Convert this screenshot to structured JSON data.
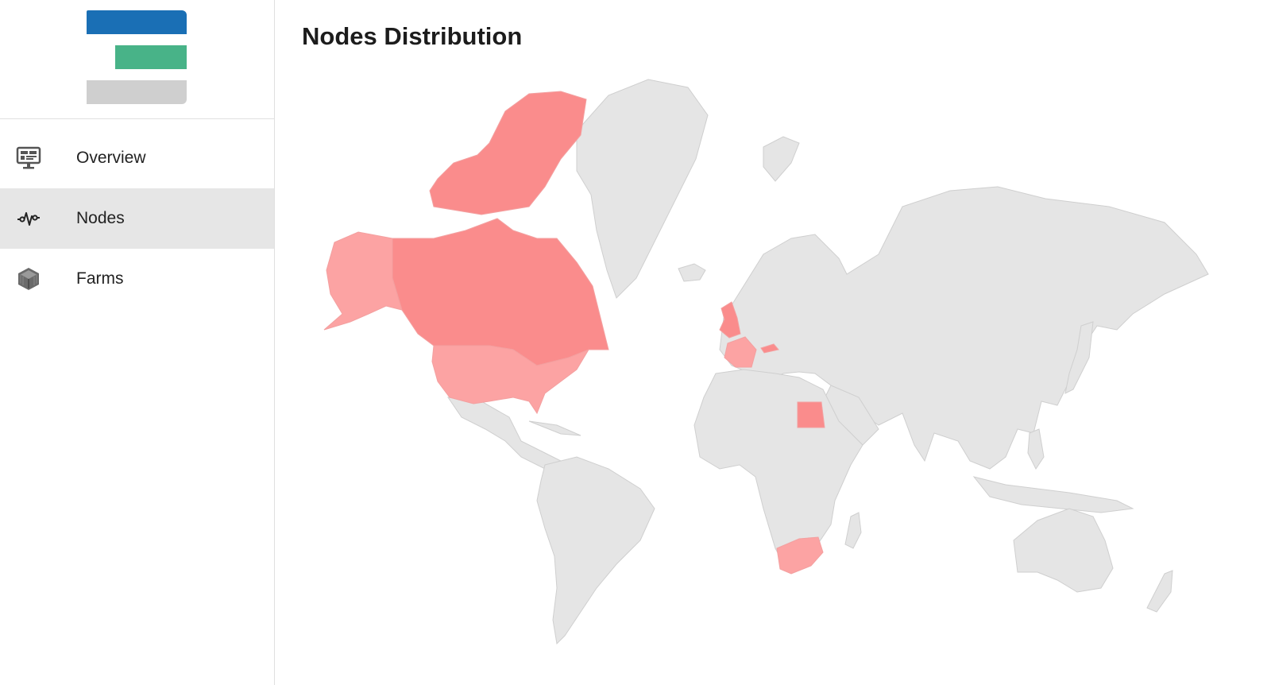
{
  "colors": {
    "logo_blue": "#1a6fb5",
    "logo_green": "#48b388",
    "logo_gray": "#cfcfcf",
    "map_land": "#e5e5e5",
    "map_highlight_strong": "#fa8c8c",
    "map_highlight_light": "#fca3a3"
  },
  "sidebar": {
    "items": [
      {
        "label": "Overview",
        "icon": "monitor-icon",
        "active": false
      },
      {
        "label": "Nodes",
        "icon": "pulse-icon",
        "active": true
      },
      {
        "label": "Farms",
        "icon": "cube-icon",
        "active": false
      }
    ]
  },
  "main": {
    "title": "Nodes Distribution"
  }
}
